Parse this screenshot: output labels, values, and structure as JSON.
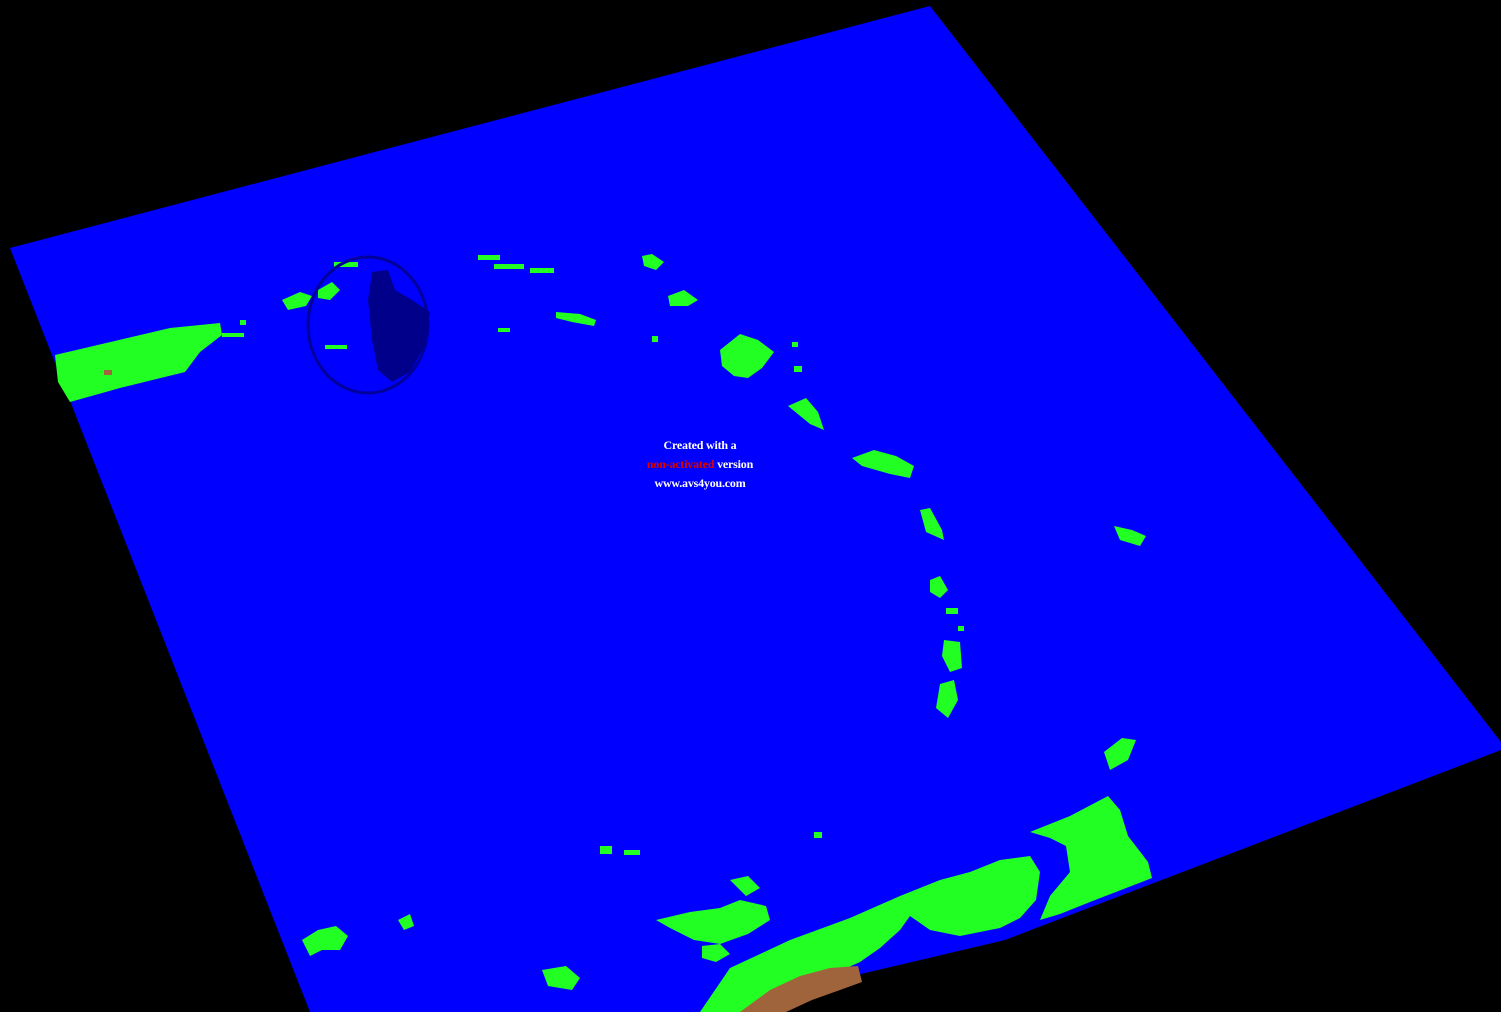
{
  "scene": {
    "background_color": "#000000",
    "water_color": "#0000ff",
    "land_color": "#22ff22",
    "soil_color": "#a0643c",
    "shadow_color": "#00008a"
  },
  "watermark": {
    "line1": "Created with a",
    "line2_highlight": "non-activated",
    "line2_rest": " version",
    "line3": "www.avs4you.com"
  }
}
